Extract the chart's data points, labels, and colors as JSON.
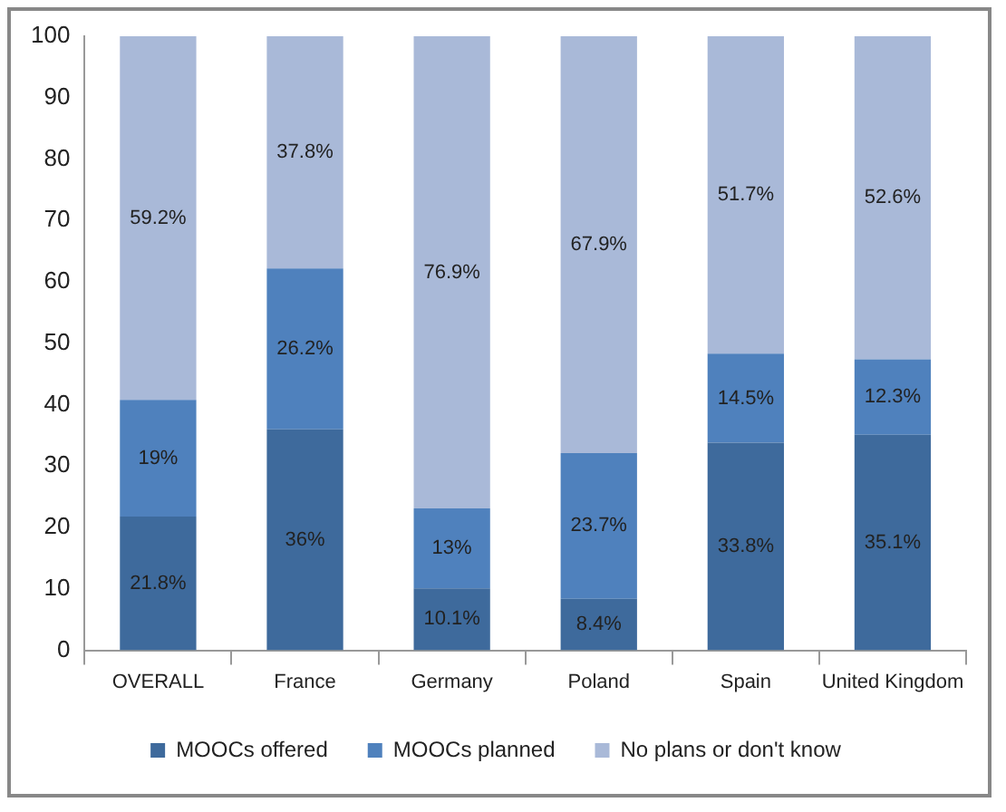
{
  "chart_data": {
    "type": "bar",
    "stacked": true,
    "categories": [
      "OVERALL",
      "France",
      "Germany",
      "Poland",
      "Spain",
      "United Kingdom"
    ],
    "series": [
      {
        "name": "MOOCs offered",
        "color": "#3e6a9c",
        "values": [
          21.8,
          36,
          10.1,
          8.4,
          33.8,
          35.1
        ],
        "value_labels": [
          "21.8%",
          "36%",
          "10.1%",
          "8.4%",
          "33.8%",
          "35.1%"
        ]
      },
      {
        "name": "MOOCs planned",
        "color": "#4f81bd",
        "values": [
          19,
          26.2,
          13,
          23.7,
          14.5,
          12.3
        ],
        "value_labels": [
          "19%",
          "26.2%",
          "13%",
          "23.7%",
          "14.5%",
          "12.3%"
        ]
      },
      {
        "name": "No plans or don't know",
        "color": "#a9b9d8",
        "values": [
          59.2,
          37.8,
          76.9,
          67.9,
          51.7,
          52.6
        ],
        "value_labels": [
          "59.2%",
          "37.8%",
          "76.9%",
          "67.9%",
          "51.7%",
          "52.6%"
        ]
      }
    ],
    "ylim": [
      0,
      100
    ],
    "yticks": [
      0,
      10,
      20,
      30,
      40,
      50,
      60,
      70,
      80,
      90,
      100
    ],
    "grid": false,
    "legend": "bottom"
  }
}
